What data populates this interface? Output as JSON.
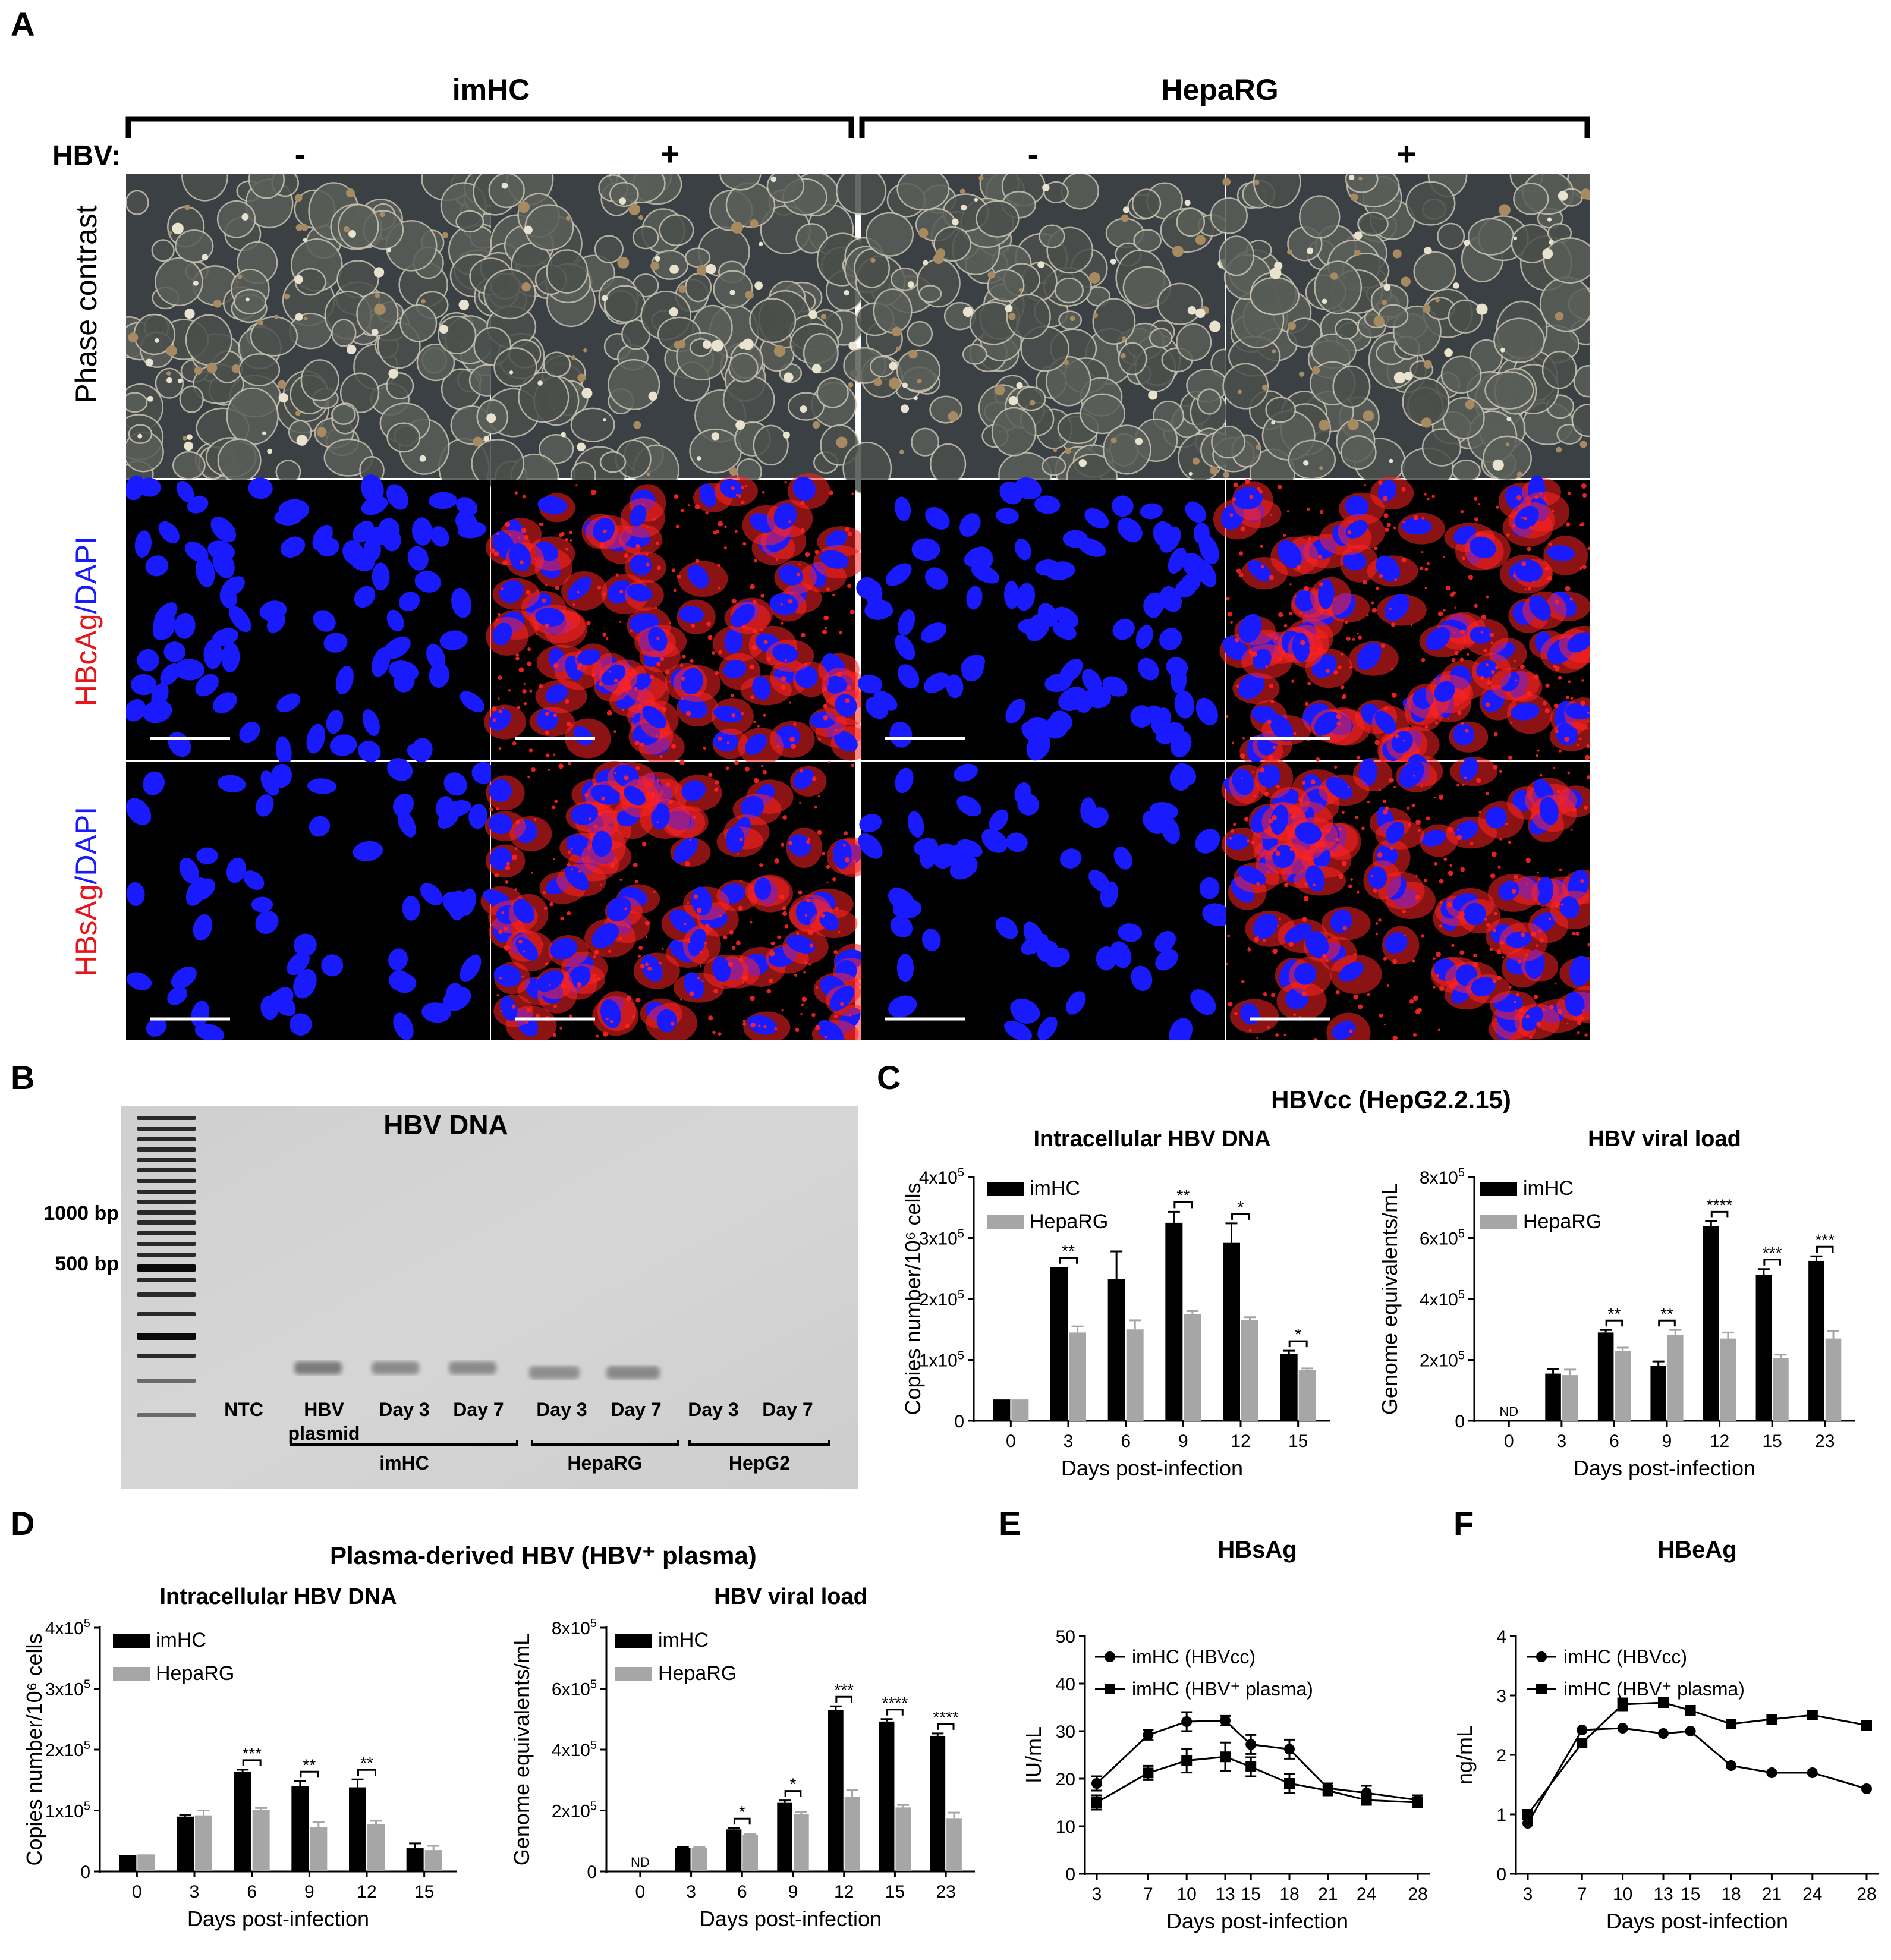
{
  "panels": {
    "a": "A",
    "b": "B",
    "c": "C",
    "d": "D",
    "e": "E",
    "f": "F"
  },
  "panel_a": {
    "groups": [
      "imHC",
      "HepaRG"
    ],
    "hbv_label": "HBV:",
    "conditions": [
      "-",
      "+",
      "-",
      "+"
    ],
    "row_labels": {
      "phase": "Phase contrast",
      "hbcag": {
        "red": "HBcAg",
        "blue": "/DAPI"
      },
      "hbsag": {
        "red": "HBsAg",
        "blue": "/DAPI"
      }
    },
    "colors": {
      "dapi": "#1a1aff",
      "antigen": "#ff2222",
      "background": "#000000"
    }
  },
  "panel_b": {
    "title": "HBV DNA",
    "markers": [
      "1000 bp",
      "500 bp"
    ],
    "lanes": [
      "NTC",
      "HBV\nplasmid",
      "Day 3",
      "Day 7",
      "Day 3",
      "Day 7",
      "Day 3",
      "Day 7"
    ],
    "groups": [
      "imHC",
      "HepaRG",
      "HepG2"
    ]
  },
  "panel_c_title": "HBVcc (HepG2.2.15)",
  "panel_d_title": "Plasma-derived HBV (HBV⁺ plasma)",
  "chart_data": [
    {
      "id": "c1",
      "type": "bar",
      "title": "Intracellular HBV DNA",
      "xlabel": "Days post-infection",
      "ylabel": "Copies number/10⁶ cells",
      "categories": [
        "0",
        "3",
        "6",
        "9",
        "12",
        "15"
      ],
      "ylim": [
        0,
        400000
      ],
      "yticks": [
        "0",
        "1x10⁵",
        "2x10⁵",
        "3x10⁵",
        "4x10⁵"
      ],
      "series": [
        {
          "name": "imHC",
          "color": "#000000",
          "values": [
            35000,
            252000,
            233000,
            325000,
            292000,
            110000
          ],
          "errors": [
            0,
            0,
            45000,
            18000,
            32000,
            5000
          ]
        },
        {
          "name": "HepaRG",
          "color": "#a6a6a6",
          "values": [
            35000,
            145000,
            150000,
            175000,
            165000,
            83000
          ],
          "errors": [
            0,
            10000,
            15000,
            5000,
            5000,
            3000
          ]
        }
      ],
      "significance": [
        {
          "index": 1,
          "label": "**"
        },
        {
          "index": 3,
          "label": "**"
        },
        {
          "index": 4,
          "label": "*"
        },
        {
          "index": 5,
          "label": "*"
        }
      ],
      "nd": []
    },
    {
      "id": "c2",
      "type": "bar",
      "title": "HBV viral load",
      "xlabel": "Days post-infection",
      "ylabel": "Genome equivalents/mL",
      "categories": [
        "0",
        "3",
        "6",
        "9",
        "12",
        "15",
        "23"
      ],
      "ylim": [
        0,
        800000
      ],
      "yticks": [
        "0",
        "2x10⁵",
        "4x10⁵",
        "6x10⁵",
        "8x10⁵"
      ],
      "series": [
        {
          "name": "imHC",
          "color": "#000000",
          "values": [
            0,
            155000,
            290000,
            180000,
            640000,
            480000,
            525000
          ],
          "errors": [
            0,
            15000,
            8000,
            15000,
            15000,
            18000,
            15000
          ]
        },
        {
          "name": "HepaRG",
          "color": "#a6a6a6",
          "values": [
            0,
            150000,
            230000,
            283000,
            270000,
            205000,
            270000
          ],
          "errors": [
            0,
            18000,
            10000,
            15000,
            20000,
            12000,
            25000
          ]
        }
      ],
      "significance": [
        {
          "index": 2,
          "label": "**"
        },
        {
          "index": 3,
          "label": "**"
        },
        {
          "index": 4,
          "label": "****"
        },
        {
          "index": 5,
          "label": "***"
        },
        {
          "index": 6,
          "label": "***"
        }
      ],
      "nd": [
        {
          "index": 0,
          "label": "ND"
        }
      ]
    },
    {
      "id": "d1",
      "type": "bar",
      "title": "Intracellular HBV DNA",
      "xlabel": "Days post-infection",
      "ylabel": "Copies number/10⁶ cells",
      "categories": [
        "0",
        "3",
        "6",
        "9",
        "12",
        "15"
      ],
      "ylim": [
        0,
        400000
      ],
      "yticks": [
        "0",
        "1x10⁵",
        "2x10⁵",
        "3x10⁵",
        "4x10⁵"
      ],
      "series": [
        {
          "name": "imHC",
          "color": "#000000",
          "values": [
            27000,
            90000,
            163000,
            140000,
            138000,
            38000
          ],
          "errors": [
            0,
            3000,
            4000,
            8000,
            13000,
            8000
          ]
        },
        {
          "name": "HepaRG",
          "color": "#a6a6a6",
          "values": [
            28000,
            92000,
            101000,
            73000,
            78000,
            35000
          ],
          "errors": [
            0,
            8000,
            3000,
            8000,
            5000,
            7000
          ]
        }
      ],
      "significance": [
        {
          "index": 2,
          "label": "***"
        },
        {
          "index": 3,
          "label": "**"
        },
        {
          "index": 4,
          "label": "**"
        }
      ],
      "nd": []
    },
    {
      "id": "d2",
      "type": "bar",
      "title": "HBV viral load",
      "xlabel": "Days post-infection",
      "ylabel": "Genome equivalents/mL",
      "categories": [
        "0",
        "3",
        "6",
        "9",
        "12",
        "15",
        "23"
      ],
      "ylim": [
        0,
        800000
      ],
      "yticks": [
        "0",
        "2x10⁵",
        "4x10⁵",
        "6x10⁵",
        "8x10⁵"
      ],
      "series": [
        {
          "name": "imHC",
          "color": "#000000",
          "values": [
            0,
            78000,
            138000,
            225000,
            530000,
            492000,
            445000
          ],
          "errors": [
            0,
            3000,
            4000,
            8000,
            12000,
            8000,
            8000
          ]
        },
        {
          "name": "HepaRG",
          "color": "#a6a6a6",
          "values": [
            0,
            78000,
            120000,
            188000,
            245000,
            210000,
            175000
          ],
          "errors": [
            0,
            3000,
            4000,
            8000,
            22000,
            8000,
            18000
          ]
        }
      ],
      "significance": [
        {
          "index": 2,
          "label": "*"
        },
        {
          "index": 3,
          "label": "*"
        },
        {
          "index": 4,
          "label": "***"
        },
        {
          "index": 5,
          "label": "****"
        },
        {
          "index": 6,
          "label": "****"
        }
      ],
      "nd": [
        {
          "index": 0,
          "label": "ND"
        }
      ]
    },
    {
      "id": "e",
      "type": "line",
      "title": "HBsAg",
      "xlabel": "Days post-infection",
      "ylabel": "IU/mL",
      "x": [
        "3",
        "7",
        "10",
        "13",
        "15",
        "18",
        "21",
        "24",
        "28"
      ],
      "ylim": [
        0,
        50
      ],
      "yticks": [
        "0",
        "10",
        "20",
        "30",
        "40",
        "50"
      ],
      "series": [
        {
          "name": "imHC (HBVcc)",
          "marker": "circle",
          "values": [
            19,
            29.2,
            32,
            32.2,
            27.2,
            26.2,
            18,
            17,
            15.5
          ],
          "errors": [
            1.5,
            1,
            2,
            1,
            2,
            2,
            1,
            1.5,
            1
          ]
        },
        {
          "name": "imHC (HBV⁺ plasma)",
          "marker": "square",
          "values": [
            15,
            21.2,
            23.8,
            24.6,
            22.5,
            19,
            17.5,
            15.5,
            15
          ],
          "errors": [
            1.5,
            1.5,
            2.5,
            3,
            2,
            2,
            1,
            1,
            0.5
          ]
        }
      ]
    },
    {
      "id": "f",
      "type": "line",
      "title": "HBeAg",
      "xlabel": "Days post-infection",
      "ylabel": "ng/mL",
      "x": [
        "3",
        "7",
        "10",
        "13",
        "15",
        "18",
        "21",
        "24",
        "28"
      ],
      "ylim": [
        0,
        4
      ],
      "yticks": [
        "0",
        "1",
        "2",
        "3",
        "4"
      ],
      "series": [
        {
          "name": "imHC (HBVcc)",
          "marker": "circle",
          "values": [
            0.85,
            2.42,
            2.45,
            2.36,
            2.4,
            1.82,
            1.7,
            1.7,
            1.43
          ],
          "errors": [
            0,
            0,
            0,
            0,
            0,
            0,
            0,
            0,
            0
          ]
        },
        {
          "name": "imHC (HBV⁺ plasma)",
          "marker": "square",
          "values": [
            1.0,
            2.2,
            2.85,
            2.88,
            2.75,
            2.52,
            2.6,
            2.67,
            2.5
          ],
          "errors": [
            0,
            0,
            0.1,
            0,
            0,
            0,
            0,
            0,
            0
          ]
        }
      ]
    }
  ]
}
